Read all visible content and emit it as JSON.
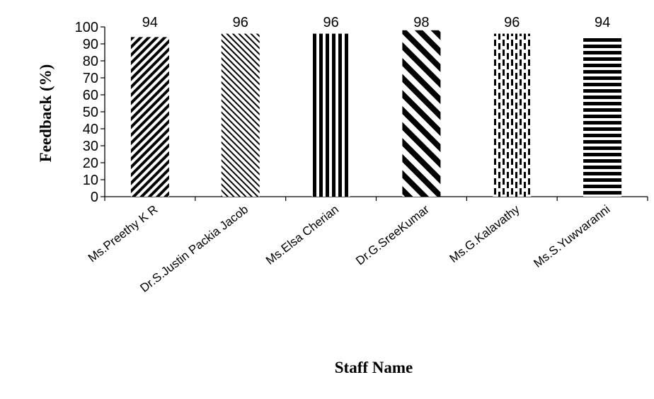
{
  "chart_data": {
    "type": "bar",
    "categories": [
      "Ms.Preethy K R",
      "Dr.S.Justin Packia Jacob",
      "Ms.Elsa Cherian",
      "Dr.G.SreeKumar",
      "Ms.G.Kalavathy",
      "Ms.S.Yuwvaranni"
    ],
    "values": [
      94,
      96,
      96,
      98,
      96,
      94
    ],
    "data_labels": [
      "94",
      "96",
      "96",
      "98",
      "96",
      "94"
    ],
    "xlabel": "Staff Name",
    "ylabel": "Feedback (%)",
    "ylim": [
      0,
      100
    ],
    "yticks": [
      0,
      10,
      20,
      30,
      40,
      50,
      60,
      70,
      80,
      90,
      100
    ],
    "grid": false,
    "legend": "none",
    "bar_patterns": [
      "wide-upward-diagonal",
      "light-downward-diagonal",
      "wide-vertical",
      "wide-downward-diagonal",
      "dashed-vertical",
      "wide-horizontal"
    ],
    "bar_color": "#000000"
  }
}
